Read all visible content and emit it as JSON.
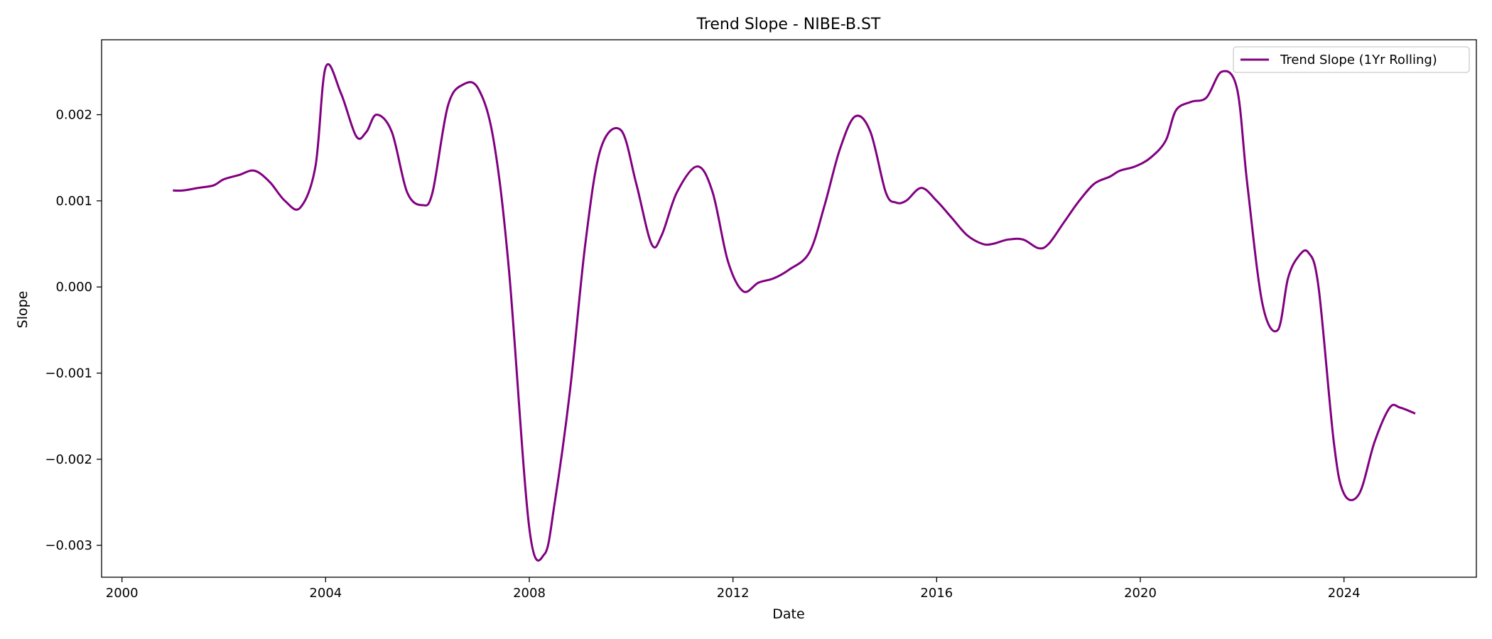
{
  "chart_data": {
    "type": "line",
    "title": "Trend Slope - NIBE-B.ST",
    "xlabel": "Date",
    "ylabel": "Slope",
    "xlim": [
      1999.6,
      2026.6
    ],
    "ylim": [
      -0.00337,
      0.00287
    ],
    "x_ticks": [
      2000,
      2004,
      2008,
      2012,
      2016,
      2020,
      2024
    ],
    "x_tick_labels": [
      "2000",
      "2004",
      "2008",
      "2012",
      "2016",
      "2020",
      "2024"
    ],
    "y_ticks": [
      -0.003,
      -0.002,
      -0.001,
      0.0,
      0.001,
      0.002
    ],
    "y_tick_labels": [
      "−0.003",
      "−0.002",
      "−0.001",
      "0.000",
      "0.001",
      "0.002"
    ],
    "grid": false,
    "legend_position": "top-right",
    "series": [
      {
        "name": "Trend Slope (1Yr Rolling)",
        "color": "#800080",
        "x": [
          2001.0,
          2001.2,
          2001.5,
          2001.8,
          2002.0,
          2002.3,
          2002.6,
          2002.9,
          2003.2,
          2003.5,
          2003.8,
          2004.0,
          2004.3,
          2004.6,
          2004.8,
          2005.0,
          2005.3,
          2005.6,
          2005.9,
          2006.1,
          2006.4,
          2006.7,
          2007.0,
          2007.3,
          2007.6,
          2008.0,
          2008.3,
          2008.5,
          2008.8,
          2009.1,
          2009.4,
          2009.8,
          2010.1,
          2010.4,
          2010.6,
          2010.9,
          2011.3,
          2011.6,
          2011.9,
          2012.2,
          2012.5,
          2012.8,
          2013.1,
          2013.5,
          2013.8,
          2014.1,
          2014.4,
          2014.7,
          2015.0,
          2015.2,
          2015.4,
          2015.7,
          2016.0,
          2016.3,
          2016.6,
          2016.9,
          2017.1,
          2017.4,
          2017.7,
          2018.0,
          2018.2,
          2018.5,
          2018.8,
          2019.1,
          2019.4,
          2019.6,
          2019.9,
          2020.2,
          2020.5,
          2020.7,
          2021.0,
          2021.3,
          2021.6,
          2021.9,
          2022.1,
          2022.4,
          2022.7,
          2022.9,
          2023.1,
          2023.3,
          2023.5,
          2023.8,
          2024.0,
          2024.3,
          2024.6,
          2024.9,
          2025.1,
          2025.4
        ],
        "y": [
          0.00112,
          0.00112,
          0.00115,
          0.00118,
          0.00125,
          0.0013,
          0.00135,
          0.00122,
          0.001,
          0.00092,
          0.0014,
          0.00255,
          0.00225,
          0.00175,
          0.0018,
          0.002,
          0.0018,
          0.0011,
          0.00095,
          0.0011,
          0.0021,
          0.00235,
          0.0023,
          0.0017,
          0.0002,
          -0.0028,
          -0.0031,
          -0.0025,
          -0.0012,
          0.0005,
          0.0016,
          0.00182,
          0.0012,
          0.0005,
          0.0006,
          0.0011,
          0.0014,
          0.0011,
          0.0003,
          -5e-05,
          5e-05,
          0.0001,
          0.0002,
          0.0004,
          0.00095,
          0.0016,
          0.00198,
          0.0018,
          0.0011,
          0.00098,
          0.001,
          0.00115,
          0.001,
          0.0008,
          0.0006,
          0.0005,
          0.0005,
          0.00055,
          0.00055,
          0.00045,
          0.0005,
          0.00075,
          0.001,
          0.0012,
          0.00128,
          0.00135,
          0.0014,
          0.0015,
          0.0017,
          0.00205,
          0.00215,
          0.0022,
          0.0025,
          0.0023,
          0.0012,
          -0.0002,
          -0.0005,
          0.0001,
          0.00035,
          0.0004,
          0.0,
          -0.0018,
          -0.0024,
          -0.0024,
          -0.0018,
          -0.0014,
          -0.0014,
          -0.00147
        ]
      }
    ]
  }
}
